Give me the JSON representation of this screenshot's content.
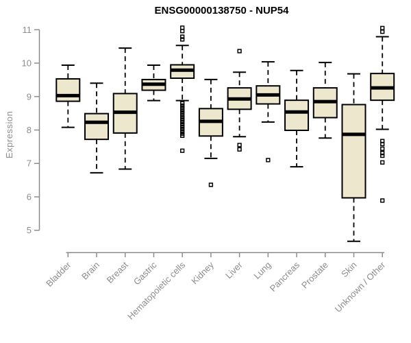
{
  "title": "ENSG00000138750 - NUP54",
  "y_axis": {
    "label": "Expression"
  },
  "colors": {
    "background": "#ffffff",
    "box_fill": "#EDE8CD",
    "box_border": "#000000",
    "median": "#000000",
    "axis": "#8C8C8C",
    "title_color": "#000000"
  },
  "chart_data": {
    "type": "boxplot",
    "title": "ENSG00000138750 - NUP54",
    "xlabel": "",
    "ylabel": "Expression",
    "ylim": [
      5,
      11
    ],
    "yticks": [
      5,
      6,
      7,
      8,
      9,
      10,
      11
    ],
    "grid": false,
    "legend": false,
    "categories": [
      "Bladder",
      "Brain",
      "Breast",
      "Gastric",
      "Hematopoietic cells",
      "Kidney",
      "Liver",
      "Lung",
      "Pancreas",
      "Prostate",
      "Skin",
      "Unknown / Other"
    ],
    "series": [
      {
        "category": "Bladder",
        "whisker_low": 8.08,
        "q1": 8.86,
        "median": 9.03,
        "q3": 9.53,
        "whisker_high": 9.94,
        "outliers": []
      },
      {
        "category": "Brain",
        "whisker_low": 6.72,
        "q1": 7.72,
        "median": 8.23,
        "q3": 8.49,
        "whisker_high": 9.4,
        "outliers": []
      },
      {
        "category": "Breast",
        "whisker_low": 6.83,
        "q1": 7.91,
        "median": 8.53,
        "q3": 9.09,
        "whisker_high": 10.45,
        "outliers": []
      },
      {
        "category": "Gastric",
        "whisker_low": 8.88,
        "q1": 9.19,
        "median": 9.37,
        "q3": 9.51,
        "whisker_high": 9.94,
        "outliers": []
      },
      {
        "category": "Hematopoietic cells",
        "whisker_low": 8.88,
        "q1": 9.55,
        "median": 9.79,
        "q3": 9.95,
        "whisker_high": 10.53,
        "outliers": [
          11.06,
          10.96,
          10.79,
          10.71,
          8.8,
          8.73,
          8.66,
          8.59,
          8.52,
          8.45,
          8.38,
          8.31,
          8.24,
          8.17,
          8.1,
          8.03,
          7.96,
          7.89,
          7.83,
          7.38
        ]
      },
      {
        "category": "Kidney",
        "whisker_low": 7.15,
        "q1": 7.82,
        "median": 8.26,
        "q3": 8.64,
        "whisker_high": 9.51,
        "outliers": [
          6.36
        ]
      },
      {
        "category": "Liver",
        "whisker_low": 7.8,
        "q1": 8.62,
        "median": 8.93,
        "q3": 9.26,
        "whisker_high": 9.73,
        "outliers": [
          10.36,
          7.55,
          7.42
        ]
      },
      {
        "category": "Lung",
        "whisker_low": 8.24,
        "q1": 8.78,
        "median": 9.05,
        "q3": 9.32,
        "whisker_high": 10.04,
        "outliers": [
          7.1
        ]
      },
      {
        "category": "Pancreas",
        "whisker_low": 6.9,
        "q1": 7.99,
        "median": 8.54,
        "q3": 8.89,
        "whisker_high": 9.78,
        "outliers": []
      },
      {
        "category": "Prostate",
        "whisker_low": 7.76,
        "q1": 8.37,
        "median": 8.85,
        "q3": 9.26,
        "whisker_high": 10.02,
        "outliers": []
      },
      {
        "category": "Skin",
        "whisker_low": 4.67,
        "q1": 5.97,
        "median": 7.87,
        "q3": 8.76,
        "whisker_high": 9.68,
        "outliers": []
      },
      {
        "category": "Unknown / Other",
        "whisker_low": 8.02,
        "q1": 8.89,
        "median": 9.26,
        "q3": 9.69,
        "whisker_high": 10.79,
        "outliers": [
          11.05,
          10.94,
          7.67,
          7.58,
          7.44,
          7.31,
          7.23,
          7.03,
          5.89
        ]
      }
    ]
  }
}
